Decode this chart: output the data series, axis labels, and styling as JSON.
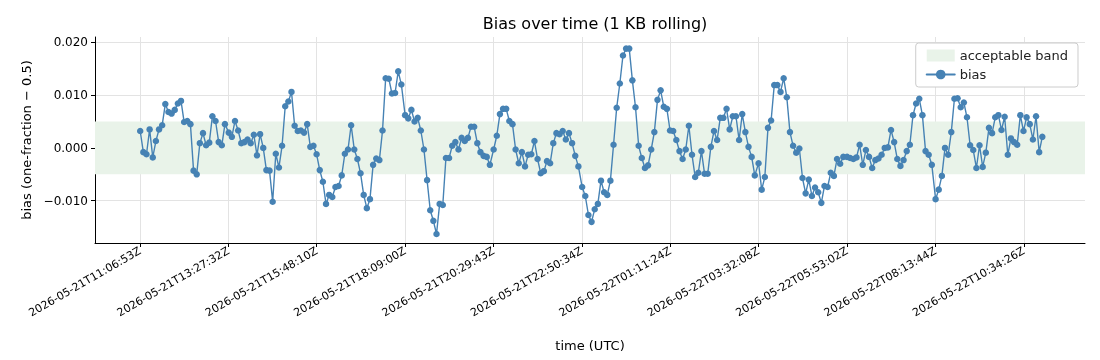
{
  "chart_data": {
    "type": "line",
    "title": "Bias over time (1 KB rolling)",
    "xlabel": "time (UTC)",
    "ylabel": "bias (one-fraction − 0.5)",
    "x": [
      "2026-05-21T11:07",
      "2026-05-21T11:12",
      "2026-05-21T11:17",
      "2026-05-21T11:22",
      "2026-05-21T11:27",
      "2026-05-21T11:32",
      "2026-05-21T11:37",
      "2026-05-21T11:42",
      "2026-05-21T11:47",
      "2026-05-21T11:52",
      "2026-05-21T11:57",
      "2026-05-21T12:02",
      "2026-05-21T12:07",
      "2026-05-21T12:12",
      "2026-05-21T12:17",
      "2026-05-21T12:22",
      "2026-05-21T12:27",
      "2026-05-21T12:32",
      "2026-05-21T12:37",
      "2026-05-21T12:42",
      "2026-05-21T12:47",
      "2026-05-21T12:52",
      "2026-05-21T12:57",
      "2026-05-21T13:02",
      "2026-05-21T13:07",
      "2026-05-21T13:12",
      "2026-05-21T13:17",
      "2026-05-21T13:22",
      "2026-05-21T13:28",
      "2026-05-21T13:33",
      "2026-05-21T13:38",
      "2026-05-21T13:43",
      "2026-05-21T13:48",
      "2026-05-21T13:53",
      "2026-05-21T13:58",
      "2026-05-21T14:03",
      "2026-05-21T14:08",
      "2026-05-21T14:13",
      "2026-05-21T14:18",
      "2026-05-21T14:23",
      "2026-05-21T14:28",
      "2026-05-21T14:33",
      "2026-05-21T14:38",
      "2026-05-21T14:43",
      "2026-05-21T14:48",
      "2026-05-21T14:53",
      "2026-05-21T14:58",
      "2026-05-21T15:03",
      "2026-05-21T15:08",
      "2026-05-21T15:13",
      "2026-05-21T15:18",
      "2026-05-21T15:23",
      "2026-05-21T15:28",
      "2026-05-21T15:33",
      "2026-05-21T15:38",
      "2026-05-21T15:43",
      "2026-05-21T15:48",
      "2026-05-21T15:53",
      "2026-05-21T15:58",
      "2026-05-21T16:03",
      "2026-05-21T16:08",
      "2026-05-21T16:13",
      "2026-05-21T16:18",
      "2026-05-21T16:23",
      "2026-05-21T16:28",
      "2026-05-21T16:33",
      "2026-05-21T16:38",
      "2026-05-21T16:43",
      "2026-05-21T16:48",
      "2026-05-21T16:53",
      "2026-05-21T16:58",
      "2026-05-21T17:03",
      "2026-05-21T17:08",
      "2026-05-21T17:13",
      "2026-05-21T17:18",
      "2026-05-21T17:23",
      "2026-05-21T17:28",
      "2026-05-21T17:33",
      "2026-05-21T17:38",
      "2026-05-21T17:43",
      "2026-05-21T17:48",
      "2026-05-21T17:53",
      "2026-05-21T17:58",
      "2026-05-21T18:03",
      "2026-05-21T18:09",
      "2026-05-21T18:14",
      "2026-05-21T18:19",
      "2026-05-21T18:24",
      "2026-05-21T18:29",
      "2026-05-21T18:34",
      "2026-05-21T18:39",
      "2026-05-21T18:44",
      "2026-05-21T18:49",
      "2026-05-21T18:54",
      "2026-05-21T18:59",
      "2026-05-21T19:04",
      "2026-05-21T19:09",
      "2026-05-21T19:14",
      "2026-05-21T19:19",
      "2026-05-21T19:24",
      "2026-05-21T19:29",
      "2026-05-21T19:34",
      "2026-05-21T19:39",
      "2026-05-21T19:44",
      "2026-05-21T19:49",
      "2026-05-21T19:54",
      "2026-05-21T19:59",
      "2026-05-21T20:04",
      "2026-05-21T20:09",
      "2026-05-21T20:14",
      "2026-05-21T20:19",
      "2026-05-21T20:24",
      "2026-05-21T20:30",
      "2026-05-21T20:35",
      "2026-05-21T20:40",
      "2026-05-21T20:45",
      "2026-05-21T20:50",
      "2026-05-21T20:55",
      "2026-05-21T21:00",
      "2026-05-21T21:05",
      "2026-05-21T21:10",
      "2026-05-21T21:15",
      "2026-05-21T21:20",
      "2026-05-21T21:25",
      "2026-05-21T21:30",
      "2026-05-21T21:35",
      "2026-05-21T21:40",
      "2026-05-21T21:45",
      "2026-05-21T21:50",
      "2026-05-21T21:55",
      "2026-05-21T22:00",
      "2026-05-21T22:05",
      "2026-05-21T22:10",
      "2026-05-21T22:15",
      "2026-05-21T22:20",
      "2026-05-21T22:25",
      "2026-05-21T22:30",
      "2026-05-21T22:35",
      "2026-05-21T22:40",
      "2026-05-21T22:45",
      "2026-05-21T22:51",
      "2026-05-21T22:56",
      "2026-05-21T23:01",
      "2026-05-21T23:06",
      "2026-05-21T23:11",
      "2026-05-21T23:16",
      "2026-05-21T23:21",
      "2026-05-21T23:26",
      "2026-05-21T23:31",
      "2026-05-21T23:36",
      "2026-05-21T23:41",
      "2026-05-21T23:46",
      "2026-05-21T23:51",
      "2026-05-21T23:56",
      "2026-05-22T00:01",
      "2026-05-22T00:06",
      "2026-05-22T00:11",
      "2026-05-22T00:16",
      "2026-05-22T00:21",
      "2026-05-22T00:26",
      "2026-05-22T00:31",
      "2026-05-22T00:36",
      "2026-05-22T00:41",
      "2026-05-22T00:46",
      "2026-05-22T00:51",
      "2026-05-22T00:56",
      "2026-05-22T01:01",
      "2026-05-22T01:06",
      "2026-05-22T01:11",
      "2026-05-22T01:16",
      "2026-05-22T01:21",
      "2026-05-22T01:26",
      "2026-05-22T01:31",
      "2026-05-22T01:36",
      "2026-05-22T01:41",
      "2026-05-22T01:46",
      "2026-05-22T01:51",
      "2026-05-22T01:56",
      "2026-05-22T02:01",
      "2026-05-22T02:06",
      "2026-05-22T02:11",
      "2026-05-22T02:16",
      "2026-05-22T02:21",
      "2026-05-22T02:26",
      "2026-05-22T02:31",
      "2026-05-22T02:36",
      "2026-05-22T02:41",
      "2026-05-22T02:46",
      "2026-05-22T02:51",
      "2026-05-22T02:56",
      "2026-05-22T03:01",
      "2026-05-22T03:06",
      "2026-05-22T03:11",
      "2026-05-22T03:16",
      "2026-05-22T03:21",
      "2026-05-22T03:26",
      "2026-05-22T03:32",
      "2026-05-22T03:37",
      "2026-05-22T03:42",
      "2026-05-22T03:47",
      "2026-05-22T03:52",
      "2026-05-22T03:57",
      "2026-05-22T04:02",
      "2026-05-22T04:07",
      "2026-05-22T04:12",
      "2026-05-22T04:17",
      "2026-05-22T04:22",
      "2026-05-22T04:27",
      "2026-05-22T04:32",
      "2026-05-22T04:37",
      "2026-05-22T04:42",
      "2026-05-22T04:47",
      "2026-05-22T04:52",
      "2026-05-22T04:57",
      "2026-05-22T05:02",
      "2026-05-22T05:07",
      "2026-05-22T05:12",
      "2026-05-22T05:17",
      "2026-05-22T05:22",
      "2026-05-22T05:27",
      "2026-05-22T05:32",
      "2026-05-22T05:37",
      "2026-05-22T05:42",
      "2026-05-22T05:47",
      "2026-05-22T05:53",
      "2026-05-22T05:58",
      "2026-05-22T06:03",
      "2026-05-22T06:08",
      "2026-05-22T06:13",
      "2026-05-22T06:18",
      "2026-05-22T06:23",
      "2026-05-22T06:28",
      "2026-05-22T06:33",
      "2026-05-22T06:38",
      "2026-05-22T06:43",
      "2026-05-22T06:48",
      "2026-05-22T06:53",
      "2026-05-22T06:58",
      "2026-05-22T07:03",
      "2026-05-22T07:08",
      "2026-05-22T07:13",
      "2026-05-22T07:18",
      "2026-05-22T07:23",
      "2026-05-22T07:28",
      "2026-05-22T07:33",
      "2026-05-22T07:38",
      "2026-05-22T07:43",
      "2026-05-22T07:48",
      "2026-05-22T07:53",
      "2026-05-22T07:58",
      "2026-05-22T08:03",
      "2026-05-22T08:08",
      "2026-05-22T08:14",
      "2026-05-22T08:19",
      "2026-05-22T08:24",
      "2026-05-22T08:29",
      "2026-05-22T08:34",
      "2026-05-22T08:39",
      "2026-05-22T08:44",
      "2026-05-22T08:49",
      "2026-05-22T08:54",
      "2026-05-22T08:59",
      "2026-05-22T09:04",
      "2026-05-22T09:09",
      "2026-05-22T09:14",
      "2026-05-22T09:19",
      "2026-05-22T09:24",
      "2026-05-22T09:29",
      "2026-05-22T09:34",
      "2026-05-22T09:39",
      "2026-05-22T09:44",
      "2026-05-22T09:49",
      "2026-05-22T09:54",
      "2026-05-22T09:59",
      "2026-05-22T10:04",
      "2026-05-22T10:09",
      "2026-05-22T10:14",
      "2026-05-22T10:19",
      "2026-05-22T10:24",
      "2026-05-22T10:29",
      "2026-05-22T10:34",
      "2026-05-22T10:39",
      "2026-05-22T10:44",
      "2026-05-22T10:49",
      "2026-05-22T10:54",
      "2026-05-22T10:59",
      "2026-05-22T11:04"
    ],
    "series": [
      {
        "name": "bias",
        "color": "#4682b4",
        "values": [
          0.0032,
          -0.0008,
          -0.0012,
          0.0035,
          -0.0018,
          0.0013,
          0.0035,
          0.0043,
          0.0083,
          0.0068,
          0.0065,
          0.0072,
          0.0084,
          0.0089,
          0.0049,
          0.0051,
          0.0045,
          -0.0043,
          -0.005,
          0.0009,
          0.0028,
          0.0005,
          0.001,
          0.006,
          0.0051,
          0.0011,
          0.0005,
          0.0045,
          0.0029,
          0.0021,
          0.0051,
          0.0033,
          0.0009,
          0.0011,
          0.0016,
          0.0009,
          0.0025,
          -0.0014,
          0.0026,
          0.0,
          -0.0042,
          -0.0043,
          -0.0102,
          -0.0011,
          -0.0037,
          0.0004,
          0.0079,
          0.0088,
          0.0106,
          0.0042,
          0.0032,
          0.0033,
          0.0029,
          0.0045,
          0.0002,
          0.0004,
          -0.0012,
          -0.0042,
          -0.0064,
          -0.0106,
          -0.0089,
          -0.0093,
          -0.0074,
          -0.0072,
          -0.0052,
          -0.0011,
          -0.0003,
          0.0043,
          -0.0003,
          -0.0021,
          -0.0048,
          -0.0089,
          -0.0114,
          -0.0097,
          -0.0032,
          -0.002,
          -0.0023,
          0.0033,
          0.0132,
          0.0131,
          0.0103,
          0.0104,
          0.0145,
          0.012,
          0.0062,
          0.0056,
          0.0072,
          0.005,
          0.0057,
          0.0033,
          -0.0003,
          -0.0061,
          -0.0118,
          -0.0138,
          -0.0163,
          -0.0106,
          -0.0108,
          -0.0019,
          -0.0019,
          0.0004,
          0.0011,
          -0.0003,
          0.0019,
          0.0013,
          0.0019,
          0.004,
          0.004,
          0.0009,
          -0.0008,
          -0.0015,
          -0.0017,
          -0.0032,
          -0.0003,
          0.0023,
          0.0064,
          0.0074,
          0.0074,
          0.0051,
          0.0045,
          -0.0003,
          -0.0029,
          -0.0008,
          -0.0035,
          -0.0013,
          -0.0012,
          0.0013,
          -0.0021,
          -0.0048,
          -0.0044,
          -0.0025,
          -0.0029,
          0.0009,
          0.0028,
          0.0026,
          0.0032,
          0.0016,
          0.0028,
          0.0009,
          -0.0015,
          -0.0035,
          -0.0074,
          -0.0091,
          -0.0127,
          -0.014,
          -0.0116,
          -0.0106,
          -0.0062,
          -0.0084,
          -0.0089,
          -0.0062,
          0.0006,
          0.0076,
          0.0122,
          0.0175,
          0.0188,
          0.0188,
          0.0128,
          0.0077,
          0.0004,
          -0.0019,
          -0.0038,
          -0.0033,
          -0.0003,
          0.003,
          0.0091,
          0.0109,
          0.0078,
          0.0074,
          0.0033,
          0.0032,
          0.0015,
          -0.0006,
          -0.0021,
          -0.0003,
          0.0042,
          -0.0013,
          -0.0055,
          -0.0047,
          -0.0006,
          -0.0049,
          -0.0049,
          0.0002,
          0.0032,
          0.0015,
          0.0057,
          0.0057,
          0.0074,
          0.0035,
          0.006,
          0.006,
          0.0015,
          0.0064,
          0.003,
          0.0002,
          -0.0017,
          -0.0052,
          -0.0029,
          -0.0079,
          -0.0055,
          0.0038,
          0.0052,
          0.0119,
          0.0119,
          0.0106,
          0.0132,
          0.0096,
          0.003,
          0.0004,
          -0.0009,
          -0.0001,
          -0.0057,
          -0.0086,
          -0.006,
          -0.0091,
          -0.0075,
          -0.0084,
          -0.0104,
          -0.0072,
          -0.0074,
          -0.0047,
          -0.0053,
          -0.0021,
          -0.003,
          -0.0017,
          -0.0017,
          -0.0019,
          -0.0021,
          -0.0018,
          0.0006,
          -0.0032,
          -0.0004,
          -0.0017,
          -0.0038,
          -0.0023,
          -0.002,
          -0.0013,
          0.0,
          0.0001,
          0.0034,
          0.0011,
          -0.0021,
          -0.0034,
          -0.0023,
          -0.0006,
          0.0006,
          0.0062,
          0.0084,
          0.0093,
          0.0062,
          -0.0006,
          -0.0013,
          -0.0032,
          -0.0097,
          -0.0079,
          -0.0053,
          0.0,
          -0.0013,
          0.003,
          0.0093,
          0.0094,
          0.0077,
          0.0086,
          0.0058,
          0.0005,
          -0.0004,
          -0.0038,
          0.0005,
          -0.0036,
          -0.0009,
          0.0038,
          0.0028,
          0.0058,
          0.0062,
          0.0034,
          0.0059,
          -0.0013,
          0.0018,
          0.0011,
          0.0006,
          0.0062,
          0.0032,
          0.0058,
          0.0045,
          0.0016,
          0.006,
          -0.0008,
          0.0021
        ]
      }
    ],
    "bands": [
      {
        "axis": "y",
        "from": -0.005,
        "to": 0.005,
        "label": "acceptable band",
        "color": "#e9f3e9"
      }
    ],
    "xlim": [
      "2026-05-21T09:55",
      "2026-05-22T12:12"
    ],
    "xticks": [
      {
        "value": "2026-05-21T11:06:53",
        "label": "2026-05-21T11:06:53Z"
      },
      {
        "value": "2026-05-21T13:27:32",
        "label": "2026-05-21T13:27:32Z"
      },
      {
        "value": "2026-05-21T15:48:10",
        "label": "2026-05-21T15:48:10Z"
      },
      {
        "value": "2026-05-21T18:09:00",
        "label": "2026-05-21T18:09:00Z"
      },
      {
        "value": "2026-05-21T20:29:43",
        "label": "2026-05-21T20:29:43Z"
      },
      {
        "value": "2026-05-21T22:50:34",
        "label": "2026-05-21T22:50:34Z"
      },
      {
        "value": "2026-05-22T01:11:24",
        "label": "2026-05-22T01:11:24Z"
      },
      {
        "value": "2026-05-22T03:32:08",
        "label": "2026-05-22T03:32:08Z"
      },
      {
        "value": "2026-05-22T05:53:02",
        "label": "2026-05-22T05:53:02Z"
      },
      {
        "value": "2026-05-22T08:13:44",
        "label": "2026-05-22T08:13:44Z"
      },
      {
        "value": "2026-05-22T10:34:26",
        "label": "2026-05-22T10:34:26Z"
      }
    ],
    "ylim": [
      -0.018,
      0.021
    ],
    "yticks": [
      {
        "value": -0.01,
        "label": "−0.010"
      },
      {
        "value": 0,
        "label": "0.000"
      },
      {
        "value": 0.01,
        "label": "0.010"
      },
      {
        "value": 0.02,
        "label": "0.020"
      }
    ],
    "grid": true,
    "legend": "top right",
    "marker": "circle",
    "line_style": "solid"
  }
}
